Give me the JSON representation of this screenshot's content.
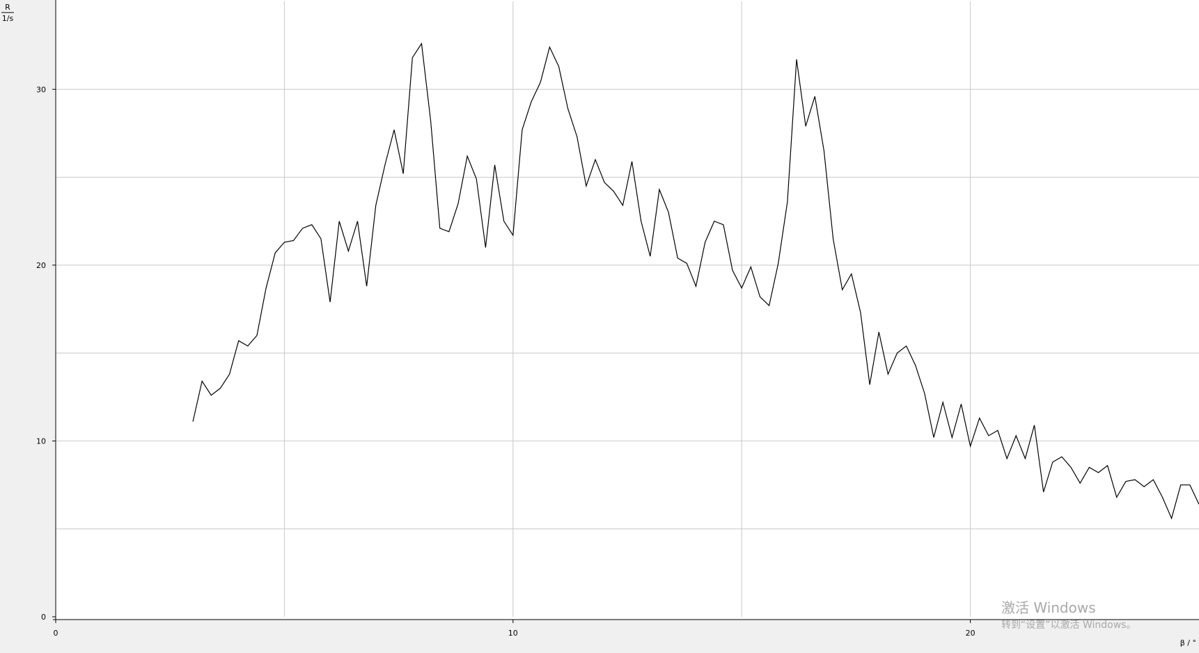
{
  "chart_data": {
    "type": "line",
    "ylabel_numerator": "R",
    "ylabel_denominator": "1/s",
    "xlabel": "β / °",
    "xlim": [
      0,
      25
    ],
    "ylim": [
      0,
      35
    ],
    "xticks": [
      0,
      10,
      20
    ],
    "yticks": [
      0,
      10,
      20,
      30
    ],
    "xgrid": [
      5,
      10,
      15,
      20
    ],
    "ygrid": [
      5,
      10,
      15,
      20,
      25,
      30
    ],
    "series": [
      {
        "color": "#000000",
        "x": [
          3.0,
          3.2,
          3.4,
          3.6,
          3.8,
          4.0,
          4.2,
          4.4,
          4.6,
          4.8,
          5.0,
          5.2,
          5.4,
          5.6,
          5.8,
          6.0,
          6.2,
          6.4,
          6.6,
          6.8,
          7.0,
          7.2,
          7.4,
          7.6,
          7.8,
          8.0,
          8.2,
          8.4,
          8.6,
          8.8,
          9.0,
          9.2,
          9.4,
          9.6,
          9.8,
          10.0,
          10.2,
          10.4,
          10.6,
          10.8,
          11.0,
          11.2,
          11.4,
          11.6,
          11.8,
          12.0,
          12.2,
          12.4,
          12.6,
          12.8,
          13.0,
          13.2,
          13.4,
          13.6,
          13.8,
          14.0,
          14.2,
          14.4,
          14.6,
          14.8,
          15.0,
          15.2,
          15.4,
          15.6,
          15.8,
          16.0,
          16.2,
          16.4,
          16.6,
          16.8,
          17.0,
          17.2,
          17.4,
          17.6,
          17.8,
          18.0,
          18.2,
          18.4,
          18.6,
          18.8,
          19.0,
          19.2,
          19.4,
          19.6,
          19.8,
          20.0,
          20.2,
          20.4,
          20.6,
          20.8,
          21.0,
          21.2,
          21.4,
          21.6,
          21.8,
          22.0,
          22.2,
          22.4,
          22.6,
          22.8,
          23.0,
          23.2,
          23.4,
          23.6,
          23.8,
          24.0,
          24.2,
          24.4,
          24.6,
          24.8,
          25.0
        ],
        "values": [
          11.1,
          13.4,
          12.6,
          13.0,
          13.8,
          15.7,
          15.4,
          16.0,
          18.7,
          20.7,
          21.3,
          21.4,
          22.1,
          22.3,
          21.5,
          17.9,
          22.5,
          20.8,
          22.5,
          18.8,
          23.4,
          25.7,
          27.7,
          25.2,
          31.8,
          32.6,
          28.2,
          22.1,
          21.9,
          23.5,
          26.2,
          24.9,
          21.0,
          25.7,
          22.5,
          21.7,
          27.7,
          29.3,
          30.4,
          32.4,
          31.3,
          28.9,
          27.3,
          24.5,
          26.0,
          24.7,
          24.2,
          23.4,
          25.9,
          22.5,
          20.5,
          24.3,
          23.0,
          20.4,
          20.1,
          18.8,
          21.3,
          22.5,
          22.3,
          19.7,
          18.7,
          19.9,
          18.2,
          17.7,
          20.1,
          23.6,
          31.7,
          27.9,
          29.6,
          26.5,
          21.5,
          18.6,
          19.5,
          17.3,
          13.2,
          16.2,
          13.8,
          15.0,
          15.4,
          14.3,
          12.7,
          10.2,
          12.2,
          10.2,
          12.1,
          9.7,
          11.3,
          10.3,
          10.6,
          9.0,
          10.3,
          9.0,
          10.9,
          7.1,
          8.8,
          9.1,
          8.5,
          7.6,
          8.5,
          8.2,
          8.6,
          6.8,
          7.7,
          7.8,
          7.4,
          7.8,
          6.8,
          5.6,
          7.5,
          7.5,
          6.4
        ]
      }
    ]
  },
  "watermark": {
    "title": "激活 Windows",
    "subtitle": "转到“设置”以激活 Windows。"
  }
}
